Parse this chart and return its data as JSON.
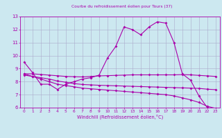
{
  "title": "Courbe du refroidissement éolien pour Tours (37)",
  "xlabel": "Windchill (Refroidissement éolien,°C)",
  "bg_color": "#cce8f0",
  "grid_color": "#aaaacc",
  "line_color": "#aa00aa",
  "xlim": [
    -0.5,
    23.5
  ],
  "ylim": [
    6,
    13
  ],
  "yticks": [
    6,
    7,
    8,
    9,
    10,
    11,
    12,
    13
  ],
  "xticks": [
    0,
    1,
    2,
    3,
    4,
    5,
    6,
    7,
    8,
    9,
    10,
    11,
    12,
    13,
    14,
    15,
    16,
    17,
    18,
    19,
    20,
    21,
    22,
    23
  ],
  "line1_x": [
    0,
    1,
    2,
    3,
    4,
    5,
    6,
    7,
    8,
    9,
    10,
    11,
    12,
    13,
    14,
    15,
    16,
    17,
    18,
    19,
    20,
    21,
    22,
    23
  ],
  "line1_y": [
    9.5,
    8.7,
    7.8,
    7.8,
    7.4,
    7.8,
    8.0,
    8.2,
    8.3,
    8.5,
    9.8,
    10.7,
    12.2,
    12.0,
    11.6,
    12.2,
    12.6,
    12.5,
    11.0,
    8.6,
    8.1,
    6.9,
    6.0,
    5.9
  ],
  "line2_x": [
    0,
    1,
    2,
    3,
    4,
    5,
    6,
    7,
    8,
    9,
    10,
    11,
    12,
    13,
    14,
    15,
    16,
    17,
    18,
    19,
    20,
    21,
    22,
    23
  ],
  "line2_y": [
    8.6,
    8.6,
    8.55,
    8.5,
    8.45,
    8.4,
    8.38,
    8.36,
    8.4,
    8.44,
    8.46,
    8.48,
    8.5,
    8.52,
    8.52,
    8.52,
    8.52,
    8.52,
    8.52,
    8.54,
    8.52,
    8.48,
    8.44,
    8.4
  ],
  "line3_x": [
    0,
    1,
    2,
    3,
    4,
    5,
    6,
    7,
    8,
    9,
    10,
    11,
    12,
    13,
    14,
    15,
    16,
    17,
    18,
    19,
    20,
    21,
    22,
    23
  ],
  "line3_y": [
    8.5,
    8.4,
    8.3,
    8.2,
    8.05,
    7.95,
    7.85,
    7.78,
    7.75,
    7.72,
    7.7,
    7.68,
    7.66,
    7.64,
    7.62,
    7.6,
    7.58,
    7.56,
    7.54,
    7.52,
    7.5,
    7.48,
    7.42,
    7.38
  ],
  "line4_x": [
    0,
    1,
    2,
    3,
    4,
    5,
    6,
    7,
    8,
    9,
    10,
    11,
    12,
    13,
    14,
    15,
    16,
    17,
    18,
    19,
    20,
    21,
    22,
    23
  ],
  "line4_y": [
    8.6,
    8.4,
    8.2,
    8.0,
    7.8,
    7.7,
    7.6,
    7.5,
    7.45,
    7.4,
    7.35,
    7.3,
    7.25,
    7.2,
    7.15,
    7.1,
    7.05,
    7.0,
    6.9,
    6.75,
    6.6,
    6.4,
    6.1,
    5.95
  ]
}
